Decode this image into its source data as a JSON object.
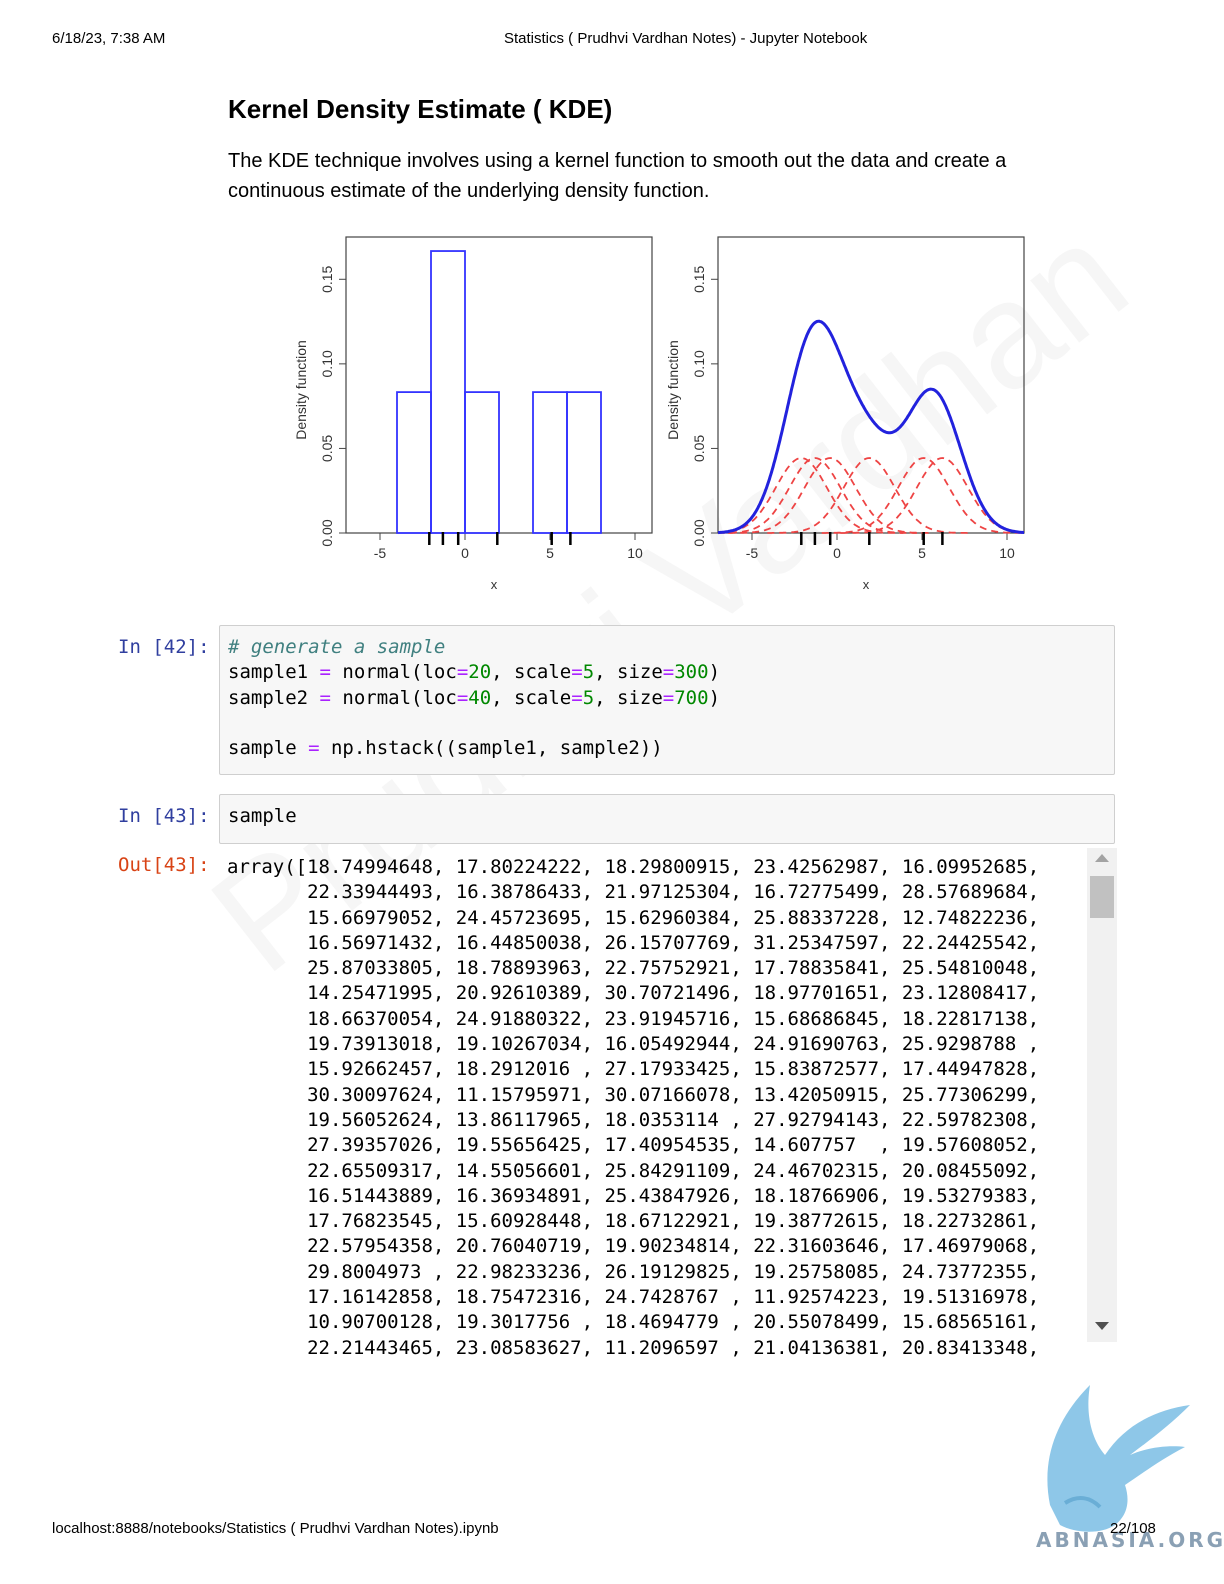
{
  "header": {
    "datetime": "6/18/23, 7:38 AM",
    "title": "Statistics ( Prudhvi Vardhan Notes) - Jupyter Notebook"
  },
  "footer": {
    "url": "localhost:8888/notebooks/Statistics ( Prudhvi Vardhan Notes).ipynb",
    "page": "22/108"
  },
  "watermark": "Prudhvi Vardhan",
  "logo_text": "ABNASIA.ORG",
  "section": {
    "heading": "Kernel Density Estimate ( KDE)",
    "description": "The KDE technique involves using a kernel function to smooth out the data and create a continuous estimate of the underlying density function."
  },
  "chart_data": [
    {
      "type": "bar",
      "ylabel": "Density function",
      "xlabel": "x",
      "xticks": [
        "-5",
        "0",
        "5",
        "10"
      ],
      "yticks": [
        "0.00",
        "0.05",
        "0.10",
        "0.15"
      ],
      "xlim": [
        -7,
        11
      ],
      "ylim": [
        0,
        0.175
      ],
      "bins": [
        [
          -4,
          -2
        ],
        [
          -2,
          0
        ],
        [
          0,
          2
        ],
        [
          4,
          6
        ],
        [
          6,
          8
        ]
      ],
      "values": [
        0.0833,
        0.1667,
        0.0833,
        0.0833,
        0.0833
      ],
      "rug": [
        -2.1,
        -1.3,
        -0.4,
        1.9,
        5.1,
        6.2
      ],
      "color": "#3333ff"
    },
    {
      "type": "line",
      "ylabel": "Density function",
      "xlabel": "x",
      "xticks": [
        "-5",
        "0",
        "5",
        "10"
      ],
      "yticks": [
        "0.00",
        "0.05",
        "0.10",
        "0.15"
      ],
      "xlim": [
        -7,
        11
      ],
      "ylim": [
        0,
        0.175
      ],
      "kernel_centers": [
        -2.1,
        -1.3,
        -0.4,
        1.9,
        5.1,
        6.2
      ],
      "kernel_sd": 1.5,
      "series": [
        {
          "color": "#2222dd",
          "style": "solid"
        },
        {
          "color": "#ee4444",
          "style": "dashed"
        }
      ],
      "rug": [
        -2.1,
        -1.3,
        -0.4,
        1.9,
        5.1,
        6.2
      ]
    }
  ],
  "cells": [
    {
      "prompt": "In [42]:",
      "lines": [
        [
          {
            "t": "# generate a sample",
            "c": "cm"
          }
        ],
        [
          {
            "t": "sample1 "
          },
          {
            "t": "=",
            "c": "op"
          },
          {
            "t": " normal(loc"
          },
          {
            "t": "=",
            "c": "op"
          },
          {
            "t": "20",
            "c": "num"
          },
          {
            "t": ", scale"
          },
          {
            "t": "=",
            "c": "op"
          },
          {
            "t": "5",
            "c": "num"
          },
          {
            "t": ", size"
          },
          {
            "t": "=",
            "c": "op"
          },
          {
            "t": "300",
            "c": "num"
          },
          {
            "t": ")"
          }
        ],
        [
          {
            "t": "sample2 "
          },
          {
            "t": "=",
            "c": "op"
          },
          {
            "t": " normal(loc"
          },
          {
            "t": "=",
            "c": "op"
          },
          {
            "t": "40",
            "c": "num"
          },
          {
            "t": ", scale"
          },
          {
            "t": "=",
            "c": "op"
          },
          {
            "t": "5",
            "c": "num"
          },
          {
            "t": ", size"
          },
          {
            "t": "=",
            "c": "op"
          },
          {
            "t": "700",
            "c": "num"
          },
          {
            "t": ")"
          }
        ],
        [],
        [
          {
            "t": "sample "
          },
          {
            "t": "=",
            "c": "op"
          },
          {
            "t": " np.hstack((sample1, sample2))"
          }
        ]
      ]
    },
    {
      "prompt": "In [43]:",
      "lines": [
        [
          {
            "t": "sample"
          }
        ]
      ]
    }
  ],
  "output": {
    "prompt": "Out[43]:",
    "lines": [
      "array([18.74994648, 17.80224222, 18.29800915, 23.42562987, 16.09952685,",
      "       22.33944493, 16.38786433, 21.97125304, 16.72775499, 28.57689684,",
      "       15.66979052, 24.45723695, 15.62960384, 25.88337228, 12.74822236,",
      "       16.56971432, 16.44850038, 26.15707769, 31.25347597, 22.24425542,",
      "       25.87033805, 18.78893963, 22.75752921, 17.78835841, 25.54810048,",
      "       14.25471995, 20.92610389, 30.70721496, 18.97701651, 23.12808417,",
      "       18.66370054, 24.91880322, 23.91945716, 15.68686845, 18.22817138,",
      "       19.73913018, 19.10267034, 16.05492944, 24.91690763, 25.9298788 ,",
      "       15.92662457, 18.2912016 , 27.17933425, 15.83872577, 17.44947828,",
      "       30.30097624, 11.15795971, 30.07166078, 13.42050915, 25.77306299,",
      "       19.56052624, 13.86117965, 18.0353114 , 27.92794143, 22.59782308,",
      "       27.39357026, 19.55656425, 17.40954535, 14.607757  , 19.57608052,",
      "       22.65509317, 14.55056601, 25.84291109, 24.46702315, 20.08455092,",
      "       16.51443889, 16.36934891, 25.43847926, 18.18766906, 19.53279383,",
      "       17.76823545, 15.60928448, 18.67122921, 19.38772615, 18.22732861,",
      "       22.57954358, 20.76040719, 19.90234814, 22.31603646, 17.46979068,",
      "       29.8004973 , 22.98233236, 26.19129825, 19.25758085, 24.73772355,",
      "       17.16142858, 18.75472316, 24.7428767 , 11.92574223, 19.51316978,",
      "       10.90700128, 19.3017756 , 18.4694779 , 20.55078499, 15.68565161,",
      "       22.21443465, 23.08583627, 11.2096597 , 21.04136381, 20.83413348,"
    ]
  }
}
